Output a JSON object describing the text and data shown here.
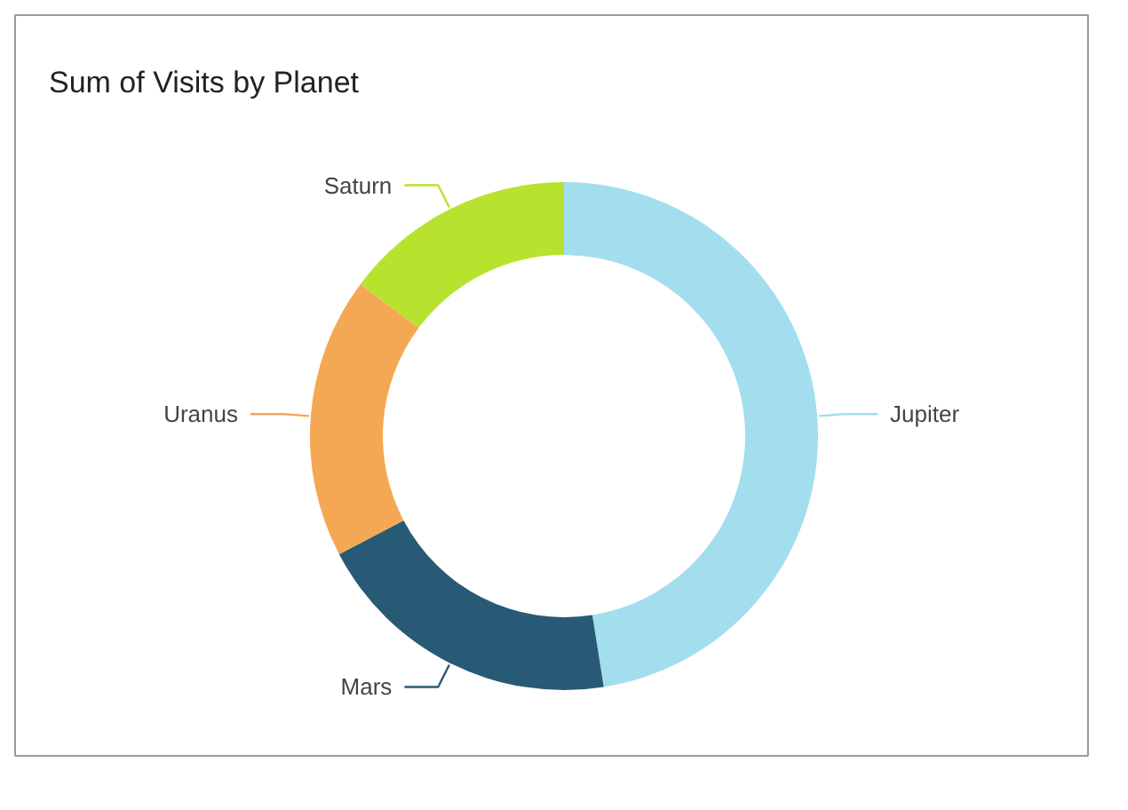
{
  "chart_data": {
    "type": "donut",
    "title": "Sum of Visits by Planet",
    "categories": [
      "Jupiter",
      "Mars",
      "Uranus",
      "Saturn"
    ],
    "values": [
      47.5,
      19.8,
      17.9,
      14.8
    ],
    "colors": [
      "#a2deee",
      "#285a75",
      "#f4a853",
      "#b7e32f"
    ]
  }
}
